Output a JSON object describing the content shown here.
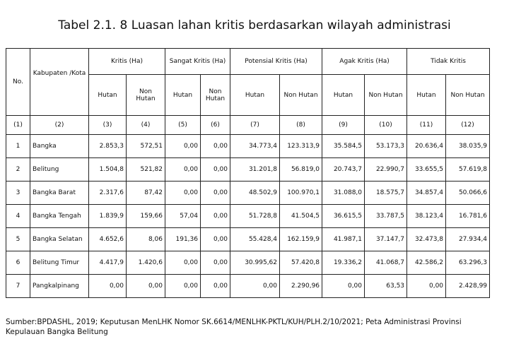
{
  "title": "Tabel 2.1. 8 Luasan lahan kritis berdasarkan wilayah administrasi",
  "table": {
    "no_header": "No.",
    "region_header": "Kabupaten /Kota",
    "groups": [
      "Kritis (Ha)",
      "Sangat Kritis (Ha)",
      "Potensial Kritis (Ha)",
      "Agak Kritis (Ha)",
      "Tidak Kritis"
    ],
    "subheaders": [
      "Hutan",
      "Non Hutan",
      "Hutan",
      "Non Hutan",
      "Hutan",
      "Non Hutan",
      "Hutan",
      "Non Hutan",
      "Hutan",
      "Non Hutan"
    ],
    "index_row": [
      "(1)",
      "(2)",
      "(3)",
      "(4)",
      "(5)",
      "(6)",
      "(7)",
      "(8)",
      "(9)",
      "(10)",
      "(11)",
      "(12)"
    ],
    "rows": [
      [
        "1",
        "Bangka",
        "2.853,3",
        "572,51",
        "0,00",
        "0,00",
        "34.773,4",
        "123.313,9",
        "35.584,5",
        "53.173,3",
        "20.636,4",
        "38.035,9"
      ],
      [
        "2",
        "Belitung",
        "1.504,8",
        "521,82",
        "0,00",
        "0,00",
        "31.201,8",
        "56.819,0",
        "20.743,7",
        "22.990,7",
        "33.655,5",
        "57.619,8"
      ],
      [
        "3",
        "Bangka Barat",
        "2.317,6",
        "87,42",
        "0,00",
        "0,00",
        "48.502,9",
        "100.970,1",
        "31.088,0",
        "18.575,7",
        "34.857,4",
        "50.066,6"
      ],
      [
        "4",
        "Bangka Tengah",
        "1.839,9",
        "159,66",
        "57,04",
        "0,00",
        "51.728,8",
        "41.504,5",
        "36.615,5",
        "33.787,5",
        "38.123,4",
        "16.781,6"
      ],
      [
        "5",
        "Bangka Selatan",
        "4.652,6",
        "8,06",
        "191,36",
        "0,00",
        "55.428,4",
        "162.159,9",
        "41.987,1",
        "37.147,7",
        "32.473,8",
        "27.934,4"
      ],
      [
        "6",
        "Belitung Timur",
        "4.417,9",
        "1.420,6",
        "0,00",
        "0,00",
        "30.995,62",
        "57.420,8",
        "19.336,2",
        "41.068,7",
        "42.586,2",
        "63.296,3"
      ],
      [
        "7",
        "Pangkalpinang",
        "0,00",
        "0,00",
        "0,00",
        "0,00",
        "0,00",
        "2.290,96",
        "0,00",
        "63,53",
        "0,00",
        "2.428,99"
      ]
    ]
  },
  "source": "Sumber:BPDASHL, 2019; Keputusan MenLHK Nomor SK.6614/MENLHK-PKTL/KUH/PLH.2/10/2021; Peta Administrasi Provinsi Kepulauan Bangka Belitung"
}
